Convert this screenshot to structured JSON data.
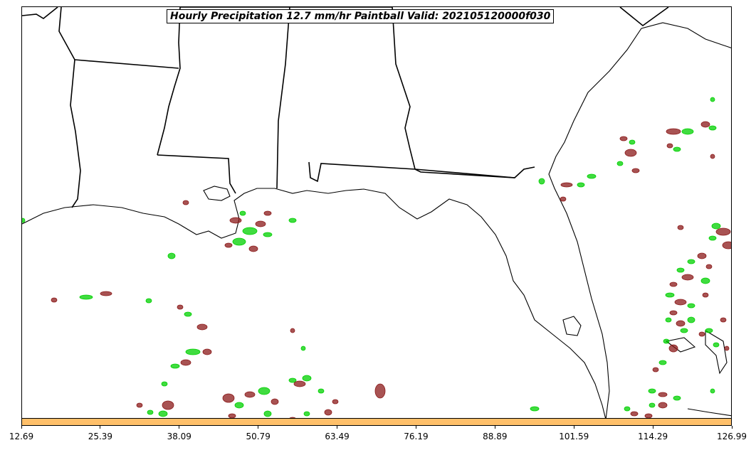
{
  "title": "Hourly Precipitation 12.7 mm/hr Paintball Valid: 202105120000f030",
  "colorbar": {
    "color": "#ffc06a",
    "ticks": [
      "12.69",
      "25.39",
      "38.09",
      "50.79",
      "63.49",
      "76.19",
      "88.89",
      "101.59",
      "114.29",
      "126.99"
    ]
  },
  "member_colors": [
    "#8b1a1a",
    "#b03a3a",
    "#ff0000",
    "#ff6a00",
    "#ffa500",
    "#a8a000",
    "#6b6b00",
    "#00d000",
    "#1a8a1a",
    "#2a6a2a",
    "#222222",
    "#7a0000",
    "#c05050",
    "#ff8040"
  ]
}
